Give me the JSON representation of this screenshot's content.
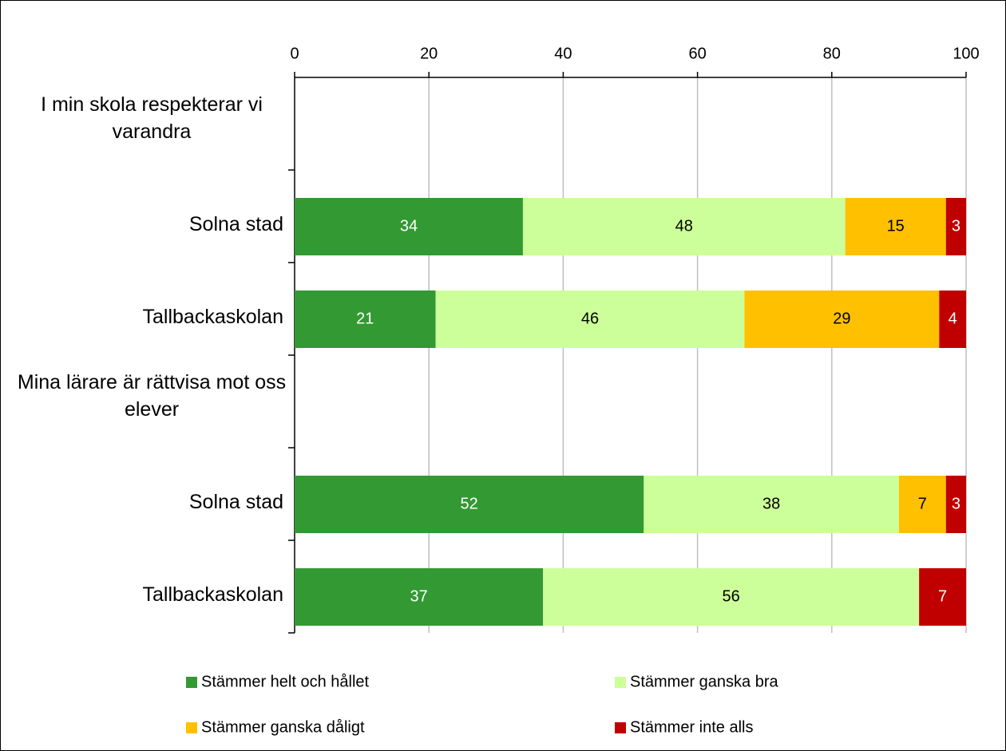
{
  "chart_data": {
    "type": "stacked_bar_horizontal",
    "categories": [
      "I min skola respekterar vi varandra",
      "Solna stad",
      "Tallbackaskolan",
      "Mina lärare är rättvisa mot oss elever",
      "Solna stad",
      "Tallbackaskolan"
    ],
    "series": [
      {
        "name": "Stämmer helt och hållet",
        "color": "#339933",
        "values": [
          null,
          34,
          21,
          null,
          52,
          37
        ]
      },
      {
        "name": "Stämmer ganska bra",
        "color": "#ccff99",
        "values": [
          null,
          48,
          46,
          null,
          38,
          56
        ]
      },
      {
        "name": "Stämmer ganska dåligt",
        "color": "#ffc000",
        "values": [
          null,
          15,
          29,
          null,
          7,
          null
        ]
      },
      {
        "name": "Stämmer inte alls",
        "color": "#c00000",
        "values": [
          null,
          3,
          4,
          null,
          3,
          7
        ]
      }
    ],
    "xlim": [
      0,
      100
    ],
    "xticks": [
      0,
      20,
      40,
      60,
      80,
      100
    ],
    "grid": true,
    "legend": "bottom"
  }
}
